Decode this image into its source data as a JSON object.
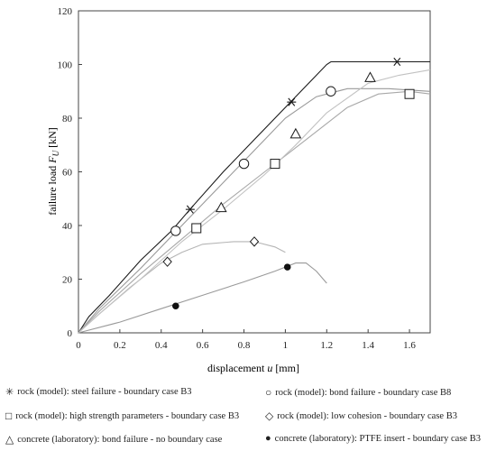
{
  "chart_data": {
    "type": "line",
    "xlabel": "displacement",
    "xlabel_var": "u",
    "xlabel_unit": "[mm]",
    "ylabel": "failure load",
    "ylabel_var": "F",
    "ylabel_sub": "U",
    "ylabel_unit": "[kN]",
    "xlim": [
      0,
      1.7
    ],
    "ylim": [
      0,
      120
    ],
    "xticks": [
      "0",
      "0.2",
      "0.4",
      "0.6",
      "0.8",
      "1",
      "1.2",
      "1.4",
      "1.6"
    ],
    "yticks": [
      "0",
      "20",
      "40",
      "60",
      "80",
      "100",
      "120"
    ],
    "grid": false,
    "legend_position": "bottom",
    "series": [
      {
        "name": "rock (model): steel failure - boundary case B3",
        "marker": "asterisk",
        "color": "#1a1a1a",
        "x": [
          0,
          0.05,
          0.15,
          0.3,
          0.45,
          0.55,
          0.7,
          0.85,
          1.0,
          1.1,
          1.2,
          1.22,
          1.3,
          1.5,
          1.7
        ],
        "y": [
          0,
          6,
          14,
          27,
          38,
          47,
          60,
          72,
          84,
          92,
          100,
          101,
          101,
          101,
          101
        ],
        "markers_x": [
          0.54,
          1.03,
          1.54
        ],
        "markers_y": [
          46,
          86,
          101
        ]
      },
      {
        "name": "rock (model): bond failure - boundary case B8",
        "marker": "circle",
        "color": "#999999",
        "x": [
          0,
          0.1,
          0.3,
          0.5,
          0.7,
          0.85,
          1.0,
          1.15,
          1.3,
          1.5,
          1.7
        ],
        "y": [
          0,
          9,
          24,
          40,
          56,
          68,
          80,
          88,
          91,
          91,
          90
        ],
        "markers_x": [
          0.47,
          0.8,
          1.22
        ],
        "markers_y": [
          38,
          63,
          90
        ]
      },
      {
        "name": "rock (model): high strength parameters - boundary case B3",
        "marker": "square",
        "color": "#a8a8a8",
        "x": [
          0,
          0.1,
          0.3,
          0.5,
          0.7,
          0.9,
          1.1,
          1.3,
          1.45,
          1.6,
          1.7
        ],
        "y": [
          0,
          8,
          22,
          35,
          48,
          60,
          72,
          84,
          89,
          90,
          89
        ],
        "markers_x": [
          0.57,
          0.95,
          1.6
        ],
        "markers_y": [
          39,
          63,
          89
        ]
      },
      {
        "name": "rock (model): low cohesion - boundary case B3",
        "marker": "diamond",
        "color": "#b5b5b5",
        "x": [
          0,
          0.1,
          0.25,
          0.4,
          0.5,
          0.6,
          0.75,
          0.85,
          0.95,
          1.0
        ],
        "y": [
          0,
          7,
          17,
          26,
          30,
          33,
          34,
          34,
          32,
          30
        ],
        "markers_x": [
          0.43,
          0.85
        ],
        "markers_y": [
          26.5,
          34
        ]
      },
      {
        "name": "concrete (laboratory): bond failure - no boundary case",
        "marker": "triangle",
        "color": "#c2c2c2",
        "x": [
          0,
          0.1,
          0.3,
          0.5,
          0.7,
          0.9,
          1.05,
          1.2,
          1.4,
          1.55,
          1.7
        ],
        "y": [
          0,
          7,
          20,
          34,
          46,
          59,
          70,
          82,
          93,
          96,
          98
        ],
        "markers_x": [
          0.69,
          1.05,
          1.41
        ],
        "markers_y": [
          46.5,
          74,
          95
        ]
      },
      {
        "name": "concrete (laboratory): PTFE insert - boundary case B3",
        "marker": "filled-circle",
        "color": "#9a9a9a",
        "x": [
          0,
          0.2,
          0.4,
          0.6,
          0.8,
          0.95,
          1.05,
          1.1,
          1.15,
          1.2
        ],
        "y": [
          0,
          4,
          9,
          14,
          19,
          23,
          26,
          26,
          23,
          18.5
        ],
        "markers_x": [
          0.47,
          1.01
        ],
        "markers_y": [
          10,
          24.5
        ]
      }
    ]
  },
  "legend": {
    "items": [
      {
        "symbol": "✳",
        "label": "rock (model): steel failure - boundary case B3"
      },
      {
        "symbol": "○",
        "label": "rock (model): bond failure  - boundary case B8"
      },
      {
        "symbol": "□",
        "label": "rock (model): high strength parameters  - boundary case B3"
      },
      {
        "symbol": "◇",
        "label": "rock (model): low cohesion  - boundary case B3"
      },
      {
        "symbol": "△",
        "label": "concrete (laboratory): bond failure - no boundary case"
      },
      {
        "symbol": "●",
        "label": "concrete (laboratory): PTFE insert - boundary case B3"
      }
    ]
  }
}
